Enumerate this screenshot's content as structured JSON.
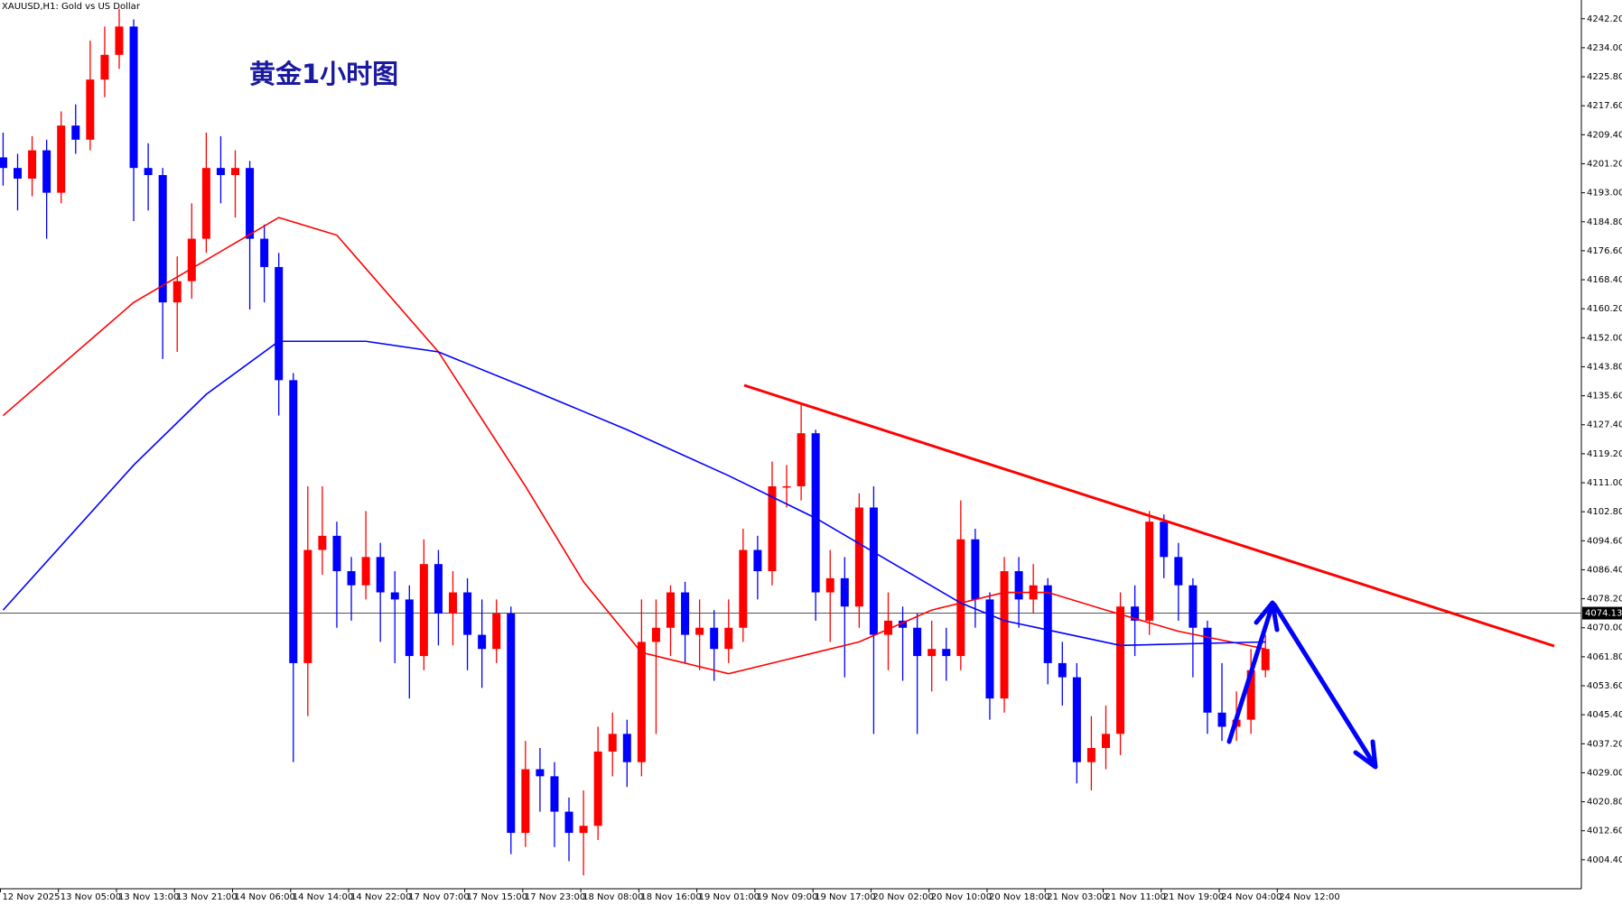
{
  "chart_data": {
    "type": "candlestick",
    "title": "XAUUSD,H1:  Gold vs US Dollar",
    "annotation": "黄金1小时图",
    "up_color": "#ff0000",
    "down_color": "#0000ff",
    "ylim": [
      3996.2,
      4247.5
    ],
    "yticks": [
      {
        "value": 4242.2,
        "label": "4242.20"
      },
      {
        "value": 4234.0,
        "label": "4234.00"
      },
      {
        "value": 4225.8,
        "label": "4225.80"
      },
      {
        "value": 4217.6,
        "label": "4217.60"
      },
      {
        "value": 4209.4,
        "label": "4209.40"
      },
      {
        "value": 4201.2,
        "label": "4201.20"
      },
      {
        "value": 4193.0,
        "label": "4193.00"
      },
      {
        "value": 4184.8,
        "label": "4184.80"
      },
      {
        "value": 4176.6,
        "label": "4176.60"
      },
      {
        "value": 4168.4,
        "label": "4168.40"
      },
      {
        "value": 4160.2,
        "label": "4160.20"
      },
      {
        "value": 4152.0,
        "label": "4152.00"
      },
      {
        "value": 4143.8,
        "label": "4143.80"
      },
      {
        "value": 4135.6,
        "label": "4135.60"
      },
      {
        "value": 4127.4,
        "label": "4127.40"
      },
      {
        "value": 4119.2,
        "label": "4119.20"
      },
      {
        "value": 4111.0,
        "label": "4111.00"
      },
      {
        "value": 4102.8,
        "label": "4102.80"
      },
      {
        "value": 4094.6,
        "label": "4094.60"
      },
      {
        "value": 4086.4,
        "label": "4086.40"
      },
      {
        "value": 4078.2,
        "label": "4078.20"
      },
      {
        "value": 4070.0,
        "label": "4070.00"
      },
      {
        "value": 4061.8,
        "label": "4061.80"
      },
      {
        "value": 4053.6,
        "label": "4053.60"
      },
      {
        "value": 4045.4,
        "label": "4045.40"
      },
      {
        "value": 4037.2,
        "label": "4037.20"
      },
      {
        "value": 4029.0,
        "label": "4029.00"
      },
      {
        "value": 4020.8,
        "label": "4020.80"
      },
      {
        "value": 4012.6,
        "label": "4012.60"
      },
      {
        "value": 4004.4,
        "label": "4004.40"
      }
    ],
    "last_price": 4074.13,
    "xlabels": [
      "12 Nov 2025",
      "13 Nov 05:00",
      "13 Nov 13:00",
      "13 Nov 21:00",
      "14 Nov 06:00",
      "14 Nov 14:00",
      "14 Nov 22:00",
      "17 Nov 07:00",
      "17 Nov 15:00",
      "17 Nov 23:00",
      "18 Nov 08:00",
      "18 Nov 16:00",
      "19 Nov 01:00",
      "19 Nov 09:00",
      "19 Nov 17:00",
      "20 Nov 02:00",
      "20 Nov 10:00",
      "20 Nov 18:00",
      "21 Nov 03:00",
      "21 Nov 11:00",
      "21 Nov 19:00",
      "24 Nov 04:00",
      "24 Nov 12:00"
    ],
    "open": [
      4203,
      4200,
      4197,
      4205,
      4193,
      4212,
      4208,
      4225,
      4232,
      4240,
      4200,
      4198,
      4162,
      4168,
      4180,
      4200,
      4198,
      4200,
      4180,
      4172,
      4140,
      4060,
      4092,
      4096,
      4086,
      4082,
      4090,
      4080,
      4078,
      4062,
      4088,
      4074,
      4080,
      4068,
      4064,
      4074,
      4012,
      4030,
      4028,
      4018,
      4012,
      4014,
      4035,
      4040,
      4032,
      4066,
      4070,
      4080,
      4068,
      4070,
      4064,
      4070,
      4092,
      4086,
      4110,
      4110,
      4125,
      4080,
      4084,
      4076,
      4104,
      4068,
      4072,
      4070,
      4062,
      4064,
      4062,
      4095,
      4078,
      4050,
      4086,
      4078,
      4082,
      4060,
      4056,
      4032,
      4036,
      4040,
      4076,
      4072,
      4100,
      4090,
      4082,
      4070,
      4046,
      4042,
      4044,
      4058
    ],
    "high": [
      4210,
      4204,
      4209,
      4208,
      4216,
      4218,
      4236,
      4240,
      4245,
      4242,
      4207,
      4200,
      4175,
      4190,
      4210,
      4209,
      4205,
      4202,
      4184,
      4176,
      4142,
      4110,
      4110,
      4100,
      4090,
      4103,
      4094,
      4086,
      4082,
      4095,
      4092,
      4086,
      4084,
      4078,
      4078,
      4076,
      4038,
      4036,
      4032,
      4022,
      4024,
      4042,
      4046,
      4044,
      4078,
      4078,
      4082,
      4083,
      4078,
      4075,
      4078,
      4098,
      4096,
      4117,
      4116,
      4133,
      4126,
      4092,
      4090,
      4108,
      4110,
      4080,
      4076,
      4074,
      4072,
      4070,
      4106,
      4098,
      4080,
      4090,
      4090,
      4088,
      4084,
      4066,
      4060,
      4045,
      4048,
      4080,
      4082,
      4103,
      4102,
      4094,
      4084,
      4072,
      4060,
      4052,
      4064,
      4068
    ],
    "low": [
      4195,
      4188,
      4192,
      4180,
      4190,
      4204,
      4205,
      4220,
      4228,
      4185,
      4188,
      4146,
      4148,
      4163,
      4176,
      4190,
      4186,
      4160,
      4162,
      4130,
      4032,
      4045,
      4085,
      4070,
      4072,
      4078,
      4066,
      4060,
      4050,
      4058,
      4065,
      4065,
      4058,
      4053,
      4060,
      4006,
      4008,
      4018,
      4008,
      4004,
      4000,
      4010,
      4028,
      4025,
      4028,
      4040,
      4062,
      4060,
      4058,
      4055,
      4060,
      4066,
      4078,
      4082,
      4104,
      4106,
      4072,
      4066,
      4056,
      4070,
      4040,
      4058,
      4055,
      4040,
      4052,
      4055,
      4058,
      4070,
      4044,
      4046,
      4070,
      4074,
      4054,
      4048,
      4026,
      4024,
      4030,
      4034,
      4062,
      4068,
      4084,
      4072,
      4056,
      4040,
      4038,
      4038,
      4040,
      4056
    ],
    "close": [
      4200,
      4197,
      4205,
      4193,
      4212,
      4208,
      4225,
      4232,
      4240,
      4200,
      4198,
      4162,
      4168,
      4180,
      4200,
      4198,
      4200,
      4180,
      4172,
      4140,
      4060,
      4092,
      4096,
      4086,
      4082,
      4090,
      4080,
      4078,
      4062,
      4088,
      4074,
      4080,
      4068,
      4064,
      4074,
      4012,
      4030,
      4028,
      4018,
      4012,
      4014,
      4035,
      4040,
      4032,
      4066,
      4070,
      4080,
      4068,
      4070,
      4064,
      4070,
      4092,
      4086,
      4110,
      4110,
      4125,
      4080,
      4084,
      4076,
      4104,
      4068,
      4072,
      4070,
      4062,
      4064,
      4062,
      4095,
      4078,
      4050,
      4086,
      4078,
      4082,
      4060,
      4056,
      4032,
      4036,
      4040,
      4076,
      4072,
      4100,
      4090,
      4082,
      4070,
      4046,
      4042,
      4044,
      4058,
      4064
    ],
    "series": [
      {
        "color": "#ff0000",
        "x": [
          0,
          9,
          19,
          23,
          30,
          36,
          40,
          44,
          50,
          54,
          59,
          64,
          69,
          72,
          76,
          81,
          87
        ],
        "values": [
          4130,
          4162,
          4186,
          4181,
          4148,
          4110,
          4083,
          4063,
          4057,
          4061,
          4066,
          4075,
          4080,
          4080,
          4075,
          4069,
          4064
        ]
      },
      {
        "color": "#0000ff",
        "x": [
          0,
          9,
          14,
          19,
          25,
          30,
          36,
          43,
          50,
          56,
          61,
          66,
          69,
          77,
          87
        ],
        "values": [
          4075,
          4116,
          4136,
          4151,
          4151,
          4148,
          4138,
          4126,
          4113,
          4101,
          4089,
          4077,
          4072,
          4065,
          4066
        ]
      }
    ]
  }
}
